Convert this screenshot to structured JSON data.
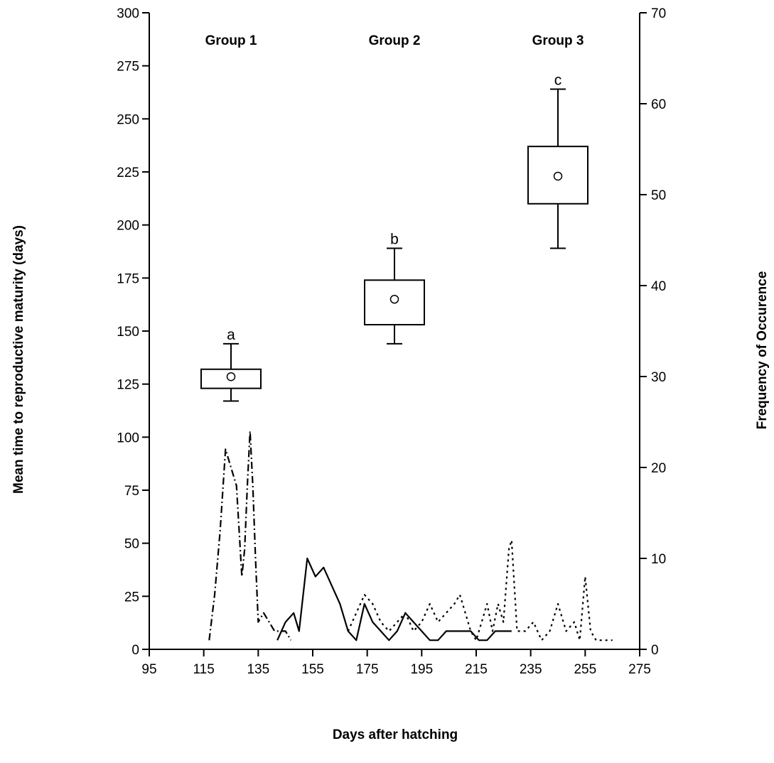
{
  "chart_data": {
    "type": "box+line",
    "xlabel": "Days after hatching",
    "ylabel_left": "Mean time to reproductive maturity (days)",
    "ylabel_right": "Frequency of Occurence",
    "xlim": [
      95,
      275
    ],
    "xticks": [
      95,
      115,
      135,
      155,
      175,
      195,
      215,
      235,
      255,
      275
    ],
    "ylim_left": [
      0,
      300
    ],
    "yticks_left": [
      0,
      25,
      50,
      75,
      100,
      125,
      150,
      175,
      200,
      225,
      250,
      275,
      300
    ],
    "ylim_right": [
      0,
      70
    ],
    "yticks_right": [
      0,
      10,
      20,
      30,
      40,
      50,
      60,
      70
    ],
    "groups": [
      {
        "label": "Group 1",
        "x_label": 125
      },
      {
        "label": "Group 2",
        "x_label": 185
      },
      {
        "label": "Group 3",
        "x_label": 245
      }
    ],
    "boxes": [
      {
        "letter": "a",
        "x": 125,
        "whisker_low": 117,
        "q1": 123,
        "mean": 128.5,
        "q3": 132,
        "whisker_high": 144
      },
      {
        "letter": "b",
        "x": 185,
        "whisker_low": 144,
        "q1": 153,
        "mean": 165,
        "q3": 174,
        "whisker_high": 189
      },
      {
        "letter": "c",
        "x": 245,
        "whisker_low": 189,
        "q1": 210,
        "mean": 223,
        "q3": 237,
        "whisker_high": 264
      }
    ],
    "series": [
      {
        "style": "dash-dot",
        "x": [
          117,
          119,
          121,
          123,
          125,
          127,
          129,
          130,
          131,
          132,
          133,
          134,
          135,
          137,
          139,
          141,
          143,
          145,
          147
        ],
        "y": [
          1,
          6,
          13,
          22,
          20,
          18,
          8,
          11,
          18,
          24,
          18,
          10,
          3,
          4,
          3,
          2,
          2,
          2,
          1
        ]
      },
      {
        "style": "solid",
        "x": [
          142,
          145,
          148,
          150,
          153,
          156,
          159,
          162,
          165,
          168,
          171,
          174,
          177,
          180,
          183,
          186,
          189,
          192,
          195,
          198,
          201,
          204,
          207,
          210,
          213,
          216,
          219,
          222,
          225,
          228
        ],
        "y": [
          1,
          3,
          4,
          2,
          10,
          8,
          9,
          7,
          5,
          2,
          1,
          5,
          3,
          2,
          1,
          2,
          4,
          3,
          2,
          1,
          1,
          2,
          2,
          2,
          2,
          1,
          1,
          2,
          2,
          2
        ]
      },
      {
        "style": "dotted",
        "x": [
          168,
          171,
          174,
          177,
          180,
          183,
          186,
          189,
          192,
          195,
          198,
          201,
          204,
          207,
          209,
          211,
          213,
          215,
          217,
          219,
          221,
          223,
          225,
          227,
          228,
          230,
          233,
          236,
          239,
          242,
          245,
          248,
          251,
          253,
          255,
          257,
          259,
          262,
          265
        ],
        "y": [
          2,
          4,
          6,
          5,
          3,
          2,
          3,
          4,
          2,
          3,
          5,
          3,
          4,
          5,
          6,
          4,
          2,
          1,
          3,
          5,
          2,
          5,
          3,
          11,
          12,
          2,
          2,
          3,
          1,
          2,
          5,
          2,
          3,
          1,
          8,
          2,
          1,
          1,
          1
        ]
      }
    ]
  }
}
